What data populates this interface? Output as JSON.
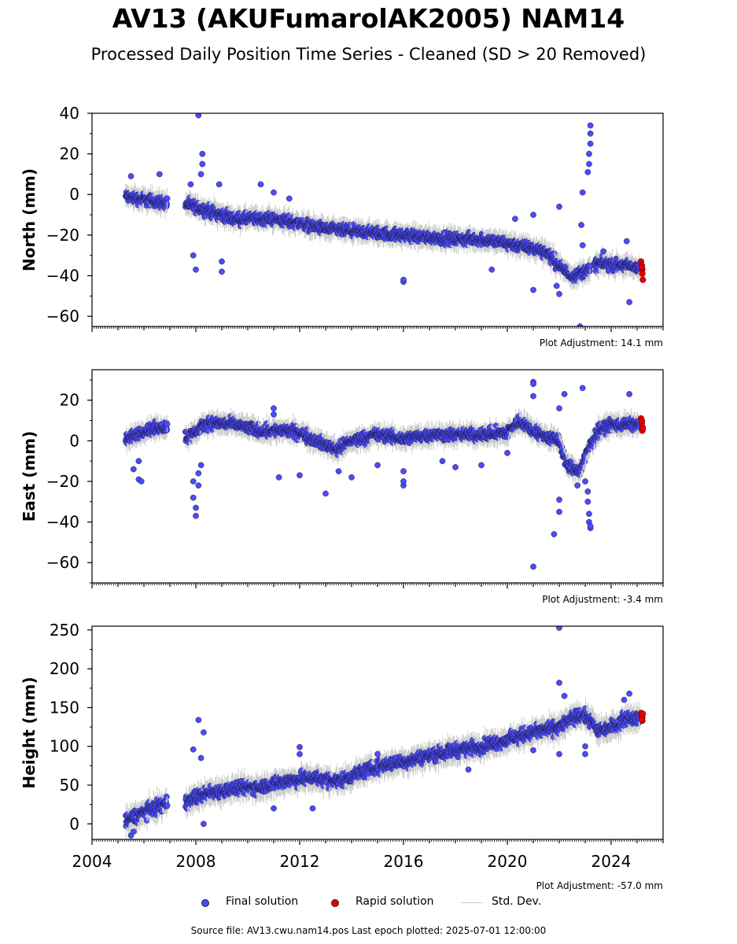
{
  "title": "AV13 (AKUFumarolAK2005) NAM14",
  "subtitle": "Processed Daily Position Time Series - Cleaned (SD > 20 Removed)",
  "footer": "Source file: AV13.cwu.nam14.pos  Last epoch plotted: 2025-07-01 12:00:00",
  "legend": {
    "final": "Final solution",
    "rapid": "Rapid solution",
    "stddev": "Std. Dev."
  },
  "colors": {
    "final": "#4b4bff",
    "rapid": "#e60000",
    "stddev": "#cccccc"
  },
  "chart_data": [
    {
      "type": "scatter",
      "ylabel": "North (mm)",
      "adjustment": "Plot Adjustment: 14.1 mm",
      "ylim": [
        -65,
        40
      ],
      "xlim": [
        2004.0,
        2026.0
      ],
      "yticks": [
        40,
        20,
        0,
        -20,
        -40,
        -60
      ],
      "trend": [
        [
          2005.3,
          -1
        ],
        [
          2006.8,
          -4
        ],
        [
          2007.7,
          -5
        ],
        [
          2008.5,
          -8
        ],
        [
          2009.5,
          -12
        ],
        [
          2011.0,
          -12
        ],
        [
          2012.0,
          -14
        ],
        [
          2013.0,
          -17
        ],
        [
          2014.0,
          -18
        ],
        [
          2015.0,
          -19
        ],
        [
          2016.0,
          -20
        ],
        [
          2017.0,
          -21
        ],
        [
          2018.0,
          -22
        ],
        [
          2019.0,
          -22
        ],
        [
          2020.0,
          -24
        ],
        [
          2020.8,
          -26
        ],
        [
          2021.5,
          -28
        ],
        [
          2022.0,
          -35
        ],
        [
          2022.5,
          -40
        ],
        [
          2023.0,
          -38
        ],
        [
          2023.5,
          -34
        ],
        [
          2024.5,
          -35
        ],
        [
          2025.3,
          -36
        ]
      ],
      "gaps": [
        [
          2006.9,
          2007.6
        ],
        [
          2023.2,
          2023.35
        ]
      ],
      "spread": 3,
      "outliers": [
        [
          2008.1,
          39
        ],
        [
          2008.25,
          20
        ],
        [
          2008.25,
          15
        ],
        [
          2008.2,
          10
        ],
        [
          2007.9,
          -30
        ],
        [
          2008.0,
          -37
        ],
        [
          2009.0,
          -38
        ],
        [
          2009.0,
          -33
        ],
        [
          2008.9,
          5
        ],
        [
          2007.8,
          5
        ],
        [
          2005.5,
          9
        ],
        [
          2006.6,
          10
        ],
        [
          2010.5,
          5
        ],
        [
          2011.0,
          1
        ],
        [
          2011.6,
          -2
        ],
        [
          2016.0,
          -43
        ],
        [
          2016.0,
          -42
        ],
        [
          2021.0,
          -47
        ],
        [
          2021.0,
          -10
        ],
        [
          2022.0,
          -6
        ],
        [
          2022.0,
          -49
        ],
        [
          2022.8,
          -65
        ],
        [
          2022.9,
          1
        ],
        [
          2023.1,
          11
        ],
        [
          2023.15,
          15
        ],
        [
          2023.15,
          20
        ],
        [
          2023.2,
          25
        ],
        [
          2023.2,
          30
        ],
        [
          2023.2,
          34
        ],
        [
          2022.85,
          -15
        ],
        [
          2022.9,
          -25
        ],
        [
          2024.7,
          -53
        ],
        [
          2024.6,
          -23
        ],
        [
          2019.4,
          -37
        ],
        [
          2020.3,
          -12
        ],
        [
          2021.9,
          -45
        ],
        [
          2023.7,
          -28
        ]
      ],
      "rapid": [
        [
          2025.15,
          -33
        ],
        [
          2025.18,
          -35
        ],
        [
          2025.2,
          -37
        ],
        [
          2025.2,
          -39
        ],
        [
          2025.22,
          -42
        ],
        [
          2025.18,
          -36
        ]
      ]
    },
    {
      "type": "scatter",
      "ylabel": "East (mm)",
      "adjustment": "Plot Adjustment: -3.4 mm",
      "ylim": [
        -70,
        35
      ],
      "xlim": [
        2004.0,
        2026.0
      ],
      "yticks": [
        20,
        0,
        -20,
        -40,
        -60
      ],
      "trend": [
        [
          2005.3,
          0
        ],
        [
          2006.0,
          5
        ],
        [
          2006.8,
          7
        ],
        [
          2007.7,
          2
        ],
        [
          2008.5,
          9
        ],
        [
          2009.5,
          8
        ],
        [
          2010.5,
          5
        ],
        [
          2011.5,
          5
        ],
        [
          2012.0,
          4
        ],
        [
          2013.0,
          -2
        ],
        [
          2013.5,
          -4
        ],
        [
          2014.0,
          0
        ],
        [
          2015.0,
          3
        ],
        [
          2016.0,
          1
        ],
        [
          2017.0,
          3
        ],
        [
          2018.0,
          3
        ],
        [
          2019.0,
          3
        ],
        [
          2020.0,
          4
        ],
        [
          2020.5,
          10
        ],
        [
          2021.0,
          5
        ],
        [
          2021.5,
          2
        ],
        [
          2022.0,
          0
        ],
        [
          2022.3,
          -12
        ],
        [
          2022.8,
          -15
        ],
        [
          2023.1,
          -5
        ],
        [
          2023.5,
          5
        ],
        [
          2024.0,
          8
        ],
        [
          2025.3,
          8
        ]
      ],
      "gaps": [
        [
          2006.9,
          2007.6
        ]
      ],
      "spread": 3,
      "outliers": [
        [
          2005.6,
          -14
        ],
        [
          2005.8,
          -19
        ],
        [
          2005.9,
          -20
        ],
        [
          2005.8,
          -10
        ],
        [
          2007.9,
          -20
        ],
        [
          2007.9,
          -28
        ],
        [
          2008.0,
          -33
        ],
        [
          2008.0,
          -37
        ],
        [
          2008.1,
          -22
        ],
        [
          2008.1,
          -16
        ],
        [
          2008.2,
          -12
        ],
        [
          2011.0,
          16
        ],
        [
          2011.0,
          13
        ],
        [
          2011.2,
          -18
        ],
        [
          2012.0,
          -17
        ],
        [
          2013.0,
          -26
        ],
        [
          2013.5,
          -15
        ],
        [
          2014.0,
          -18
        ],
        [
          2015.0,
          -12
        ],
        [
          2016.0,
          -22
        ],
        [
          2016.0,
          -20
        ],
        [
          2016.0,
          -15
        ],
        [
          2017.5,
          -10
        ],
        [
          2018.0,
          -13
        ],
        [
          2019.0,
          -12
        ],
        [
          2020.0,
          -6
        ],
        [
          2021.0,
          29
        ],
        [
          2021.0,
          28
        ],
        [
          2021.0,
          22
        ],
        [
          2021.0,
          -62
        ],
        [
          2021.8,
          -46
        ],
        [
          2022.0,
          -35
        ],
        [
          2022.0,
          -29
        ],
        [
          2022.2,
          23
        ],
        [
          2022.0,
          16
        ],
        [
          2022.9,
          26
        ],
        [
          2023.1,
          -25
        ],
        [
          2023.1,
          -30
        ],
        [
          2023.15,
          -36
        ],
        [
          2023.15,
          -40
        ],
        [
          2023.2,
          -43
        ],
        [
          2023.2,
          -42
        ],
        [
          2024.7,
          23
        ],
        [
          2022.7,
          -22
        ],
        [
          2023.0,
          -20
        ]
      ],
      "rapid": [
        [
          2025.15,
          11
        ],
        [
          2025.18,
          9
        ],
        [
          2025.2,
          7
        ],
        [
          2025.2,
          5
        ],
        [
          2025.22,
          6
        ],
        [
          2025.18,
          10
        ]
      ]
    },
    {
      "type": "scatter",
      "ylabel": "Height (mm)",
      "adjustment": "Plot Adjustment: -57.0 mm",
      "ylim": [
        -20,
        255
      ],
      "xlim": [
        2004.0,
        2026.0
      ],
      "yticks": [
        250,
        200,
        150,
        100,
        50,
        0
      ],
      "xticks": [
        "2004",
        "2008",
        "2012",
        "2016",
        "2020",
        "2024"
      ],
      "xtick_values": [
        2004,
        2008,
        2012,
        2016,
        2020,
        2024
      ],
      "trend": [
        [
          2005.3,
          3
        ],
        [
          2006.0,
          15
        ],
        [
          2006.8,
          25
        ],
        [
          2007.7,
          30
        ],
        [
          2008.5,
          40
        ],
        [
          2009.5,
          45
        ],
        [
          2010.5,
          48
        ],
        [
          2011.5,
          55
        ],
        [
          2012.5,
          60
        ],
        [
          2013.5,
          55
        ],
        [
          2014.5,
          68
        ],
        [
          2015.5,
          78
        ],
        [
          2016.0,
          80
        ],
        [
          2017.0,
          88
        ],
        [
          2018.0,
          95
        ],
        [
          2019.0,
          100
        ],
        [
          2020.0,
          108
        ],
        [
          2021.0,
          118
        ],
        [
          2022.0,
          125
        ],
        [
          2022.8,
          140
        ],
        [
          2023.2,
          135
        ],
        [
          2023.5,
          120
        ],
        [
          2024.0,
          125
        ],
        [
          2024.7,
          138
        ],
        [
          2025.3,
          135
        ]
      ],
      "gaps": [
        [
          2006.9,
          2007.6
        ]
      ],
      "spread": 9,
      "outliers": [
        [
          2005.5,
          -15
        ],
        [
          2005.6,
          -10
        ],
        [
          2007.9,
          96
        ],
        [
          2008.1,
          134
        ],
        [
          2008.3,
          118
        ],
        [
          2008.3,
          0
        ],
        [
          2008.2,
          85
        ],
        [
          2011.0,
          20
        ],
        [
          2012.0,
          99
        ],
        [
          2012.0,
          90
        ],
        [
          2012.5,
          20
        ],
        [
          2015.0,
          90
        ],
        [
          2018.5,
          70
        ],
        [
          2021.0,
          95
        ],
        [
          2022.0,
          182
        ],
        [
          2022.0,
          253
        ],
        [
          2022.0,
          90
        ],
        [
          2022.2,
          165
        ],
        [
          2023.0,
          90
        ],
        [
          2023.0,
          100
        ],
        [
          2024.7,
          168
        ],
        [
          2024.5,
          160
        ]
      ],
      "rapid": [
        [
          2025.15,
          143
        ],
        [
          2025.18,
          140
        ],
        [
          2025.2,
          137
        ],
        [
          2025.2,
          133
        ],
        [
          2025.22,
          142
        ],
        [
          2025.18,
          135
        ]
      ]
    }
  ]
}
